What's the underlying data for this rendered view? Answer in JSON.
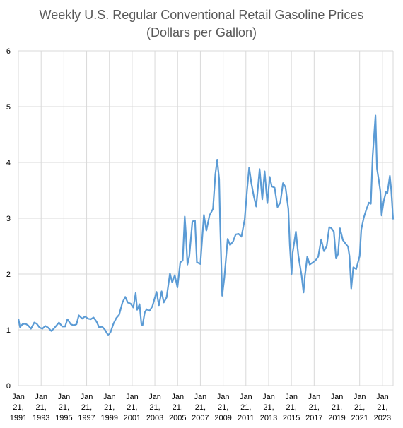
{
  "chart_data": {
    "type": "line",
    "title_line1": "Weekly U.S. Regular Conventional Retail Gasoline Prices",
    "title_line2": "(Dollars per Gallon)",
    "xlabel": "",
    "ylabel": "",
    "ylim": [
      0,
      6
    ],
    "yticks": [
      "0",
      "1",
      "2",
      "3",
      "4",
      "5",
      "6"
    ],
    "xlim": [
      "1991-01-21",
      "2023-12-31"
    ],
    "xticks": [
      {
        "date": "1991-01-21",
        "month": "Jan",
        "day": "21,",
        "year": "1991"
      },
      {
        "date": "1993-01-21",
        "month": "Jan",
        "day": "21,",
        "year": "1993"
      },
      {
        "date": "1995-01-21",
        "month": "Jan",
        "day": "21,",
        "year": "1995"
      },
      {
        "date": "1997-01-21",
        "month": "Jan",
        "day": "21,",
        "year": "1997"
      },
      {
        "date": "1999-01-21",
        "month": "Jan",
        "day": "21,",
        "year": "1999"
      },
      {
        "date": "2001-01-21",
        "month": "Jan",
        "day": "21,",
        "year": "2001"
      },
      {
        "date": "2003-01-21",
        "month": "Jan",
        "day": "21,",
        "year": "2003"
      },
      {
        "date": "2005-01-21",
        "month": "Jan",
        "day": "21,",
        "year": "2005"
      },
      {
        "date": "2007-01-21",
        "month": "Jan",
        "day": "21,",
        "year": "2007"
      },
      {
        "date": "2009-01-21",
        "month": "Jan",
        "day": "21,",
        "year": "2009"
      },
      {
        "date": "2011-01-21",
        "month": "Jan",
        "day": "21,",
        "year": "2011"
      },
      {
        "date": "2013-01-21",
        "month": "Jan",
        "day": "21,",
        "year": "2013"
      },
      {
        "date": "2015-01-21",
        "month": "Jan",
        "day": "21,",
        "year": "2015"
      },
      {
        "date": "2017-01-21",
        "month": "Jan",
        "day": "21,",
        "year": "2017"
      },
      {
        "date": "2019-01-21",
        "month": "Jan",
        "day": "21,",
        "year": "2019"
      },
      {
        "date": "2021-01-21",
        "month": "Jan",
        "day": "21,",
        "year": "2021"
      },
      {
        "date": "2023-01-21",
        "month": "Jan",
        "day": "21,",
        "year": "2023"
      }
    ],
    "grid": true,
    "legend": "none",
    "color": "#5b9bd5",
    "series": [
      {
        "x": [
          "1991-01-21",
          "1991-03-15",
          "1991-06-01",
          "1991-09-01",
          "1991-12-01",
          "1992-03-01",
          "1992-06-15",
          "1992-09-01",
          "1992-12-01",
          "1993-03-01",
          "1993-06-01",
          "1993-09-01",
          "1993-12-15",
          "1994-03-01",
          "1994-06-01",
          "1994-08-15",
          "1994-12-01",
          "1995-03-01",
          "1995-05-15",
          "1995-09-01",
          "1995-12-01",
          "1996-03-01",
          "1996-05-15",
          "1996-09-01",
          "1996-12-01",
          "1997-03-01",
          "1997-06-01",
          "1997-09-01",
          "1997-12-01",
          "1998-03-01",
          "1998-06-01",
          "1998-09-01",
          "1998-12-15",
          "1999-03-01",
          "1999-06-01",
          "1999-09-01",
          "1999-12-01",
          "2000-03-15",
          "2000-06-15",
          "2000-09-01",
          "2000-12-01",
          "2001-03-01",
          "2001-05-15",
          "2001-07-01",
          "2001-09-15",
          "2001-11-15",
          "2001-12-20",
          "2002-03-01",
          "2002-05-01",
          "2002-08-01",
          "2002-11-01",
          "2003-03-15",
          "2003-06-01",
          "2003-08-25",
          "2003-11-01",
          "2004-02-01",
          "2004-05-20",
          "2004-08-01",
          "2004-10-20",
          "2005-01-15",
          "2005-04-15",
          "2005-07-01",
          "2005-09-05",
          "2005-10-15",
          "2005-12-01",
          "2006-02-01",
          "2006-05-10",
          "2006-08-01",
          "2006-10-01",
          "2007-01-20",
          "2007-05-15",
          "2007-08-01",
          "2007-11-10",
          "2008-03-01",
          "2008-05-15",
          "2008-07-14",
          "2008-09-15",
          "2008-10-15",
          "2008-12-22",
          "2009-03-01",
          "2009-06-15",
          "2009-09-01",
          "2009-12-01",
          "2010-03-01",
          "2010-06-01",
          "2010-09-01",
          "2010-12-15",
          "2011-03-01",
          "2011-05-05",
          "2011-07-15",
          "2011-10-01",
          "2011-12-20",
          "2012-04-05",
          "2012-07-01",
          "2012-09-15",
          "2012-12-10",
          "2013-02-25",
          "2013-05-01",
          "2013-08-01",
          "2013-11-01",
          "2014-02-01",
          "2014-04-28",
          "2014-07-15",
          "2014-10-15",
          "2014-12-01",
          "2015-01-26",
          "2015-03-01",
          "2015-06-15",
          "2015-09-01",
          "2015-12-15",
          "2016-02-15",
          "2016-04-01",
          "2016-06-15",
          "2016-09-01",
          "2016-12-15",
          "2017-03-01",
          "2017-06-01",
          "2017-09-05",
          "2017-12-01",
          "2018-03-01",
          "2018-05-20",
          "2018-08-01",
          "2018-10-15",
          "2018-12-24",
          "2019-03-01",
          "2019-05-01",
          "2019-08-01",
          "2019-11-01",
          "2020-01-15",
          "2020-03-01",
          "2020-04-27",
          "2020-07-01",
          "2020-10-01",
          "2021-01-21",
          "2021-03-15",
          "2021-06-01",
          "2021-09-01",
          "2021-11-15",
          "2022-01-15",
          "2022-03-15",
          "2022-06-13",
          "2022-08-01",
          "2022-10-01",
          "2022-11-15",
          "2022-12-26",
          "2023-03-01",
          "2023-05-15",
          "2023-07-01",
          "2023-09-18",
          "2023-11-01",
          "2023-12-31"
        ],
        "values": [
          1.2,
          1.05,
          1.1,
          1.11,
          1.08,
          1.02,
          1.13,
          1.11,
          1.04,
          1.02,
          1.07,
          1.04,
          0.98,
          1.02,
          1.08,
          1.13,
          1.06,
          1.06,
          1.19,
          1.1,
          1.08,
          1.1,
          1.26,
          1.2,
          1.24,
          1.2,
          1.19,
          1.22,
          1.15,
          1.04,
          1.06,
          1.0,
          0.9,
          0.96,
          1.11,
          1.21,
          1.27,
          1.49,
          1.59,
          1.49,
          1.47,
          1.4,
          1.66,
          1.36,
          1.46,
          1.1,
          1.08,
          1.31,
          1.37,
          1.34,
          1.42,
          1.68,
          1.44,
          1.69,
          1.49,
          1.58,
          2.01,
          1.85,
          1.98,
          1.76,
          2.21,
          2.24,
          3.03,
          2.71,
          2.17,
          2.32,
          2.94,
          2.96,
          2.21,
          2.18,
          3.06,
          2.78,
          3.05,
          3.17,
          3.79,
          4.05,
          3.7,
          2.94,
          1.61,
          1.93,
          2.63,
          2.52,
          2.58,
          2.71,
          2.72,
          2.67,
          2.98,
          3.51,
          3.91,
          3.63,
          3.4,
          3.21,
          3.88,
          3.34,
          3.84,
          3.27,
          3.74,
          3.57,
          3.55,
          3.2,
          3.28,
          3.63,
          3.56,
          3.17,
          2.52,
          2.0,
          2.38,
          2.76,
          2.33,
          1.97,
          1.67,
          1.97,
          2.31,
          2.17,
          2.21,
          2.24,
          2.31,
          2.62,
          2.41,
          2.5,
          2.84,
          2.82,
          2.76,
          2.28,
          2.36,
          2.82,
          2.61,
          2.54,
          2.49,
          2.32,
          1.74,
          2.12,
          2.09,
          2.32,
          2.8,
          3.01,
          3.17,
          3.28,
          3.26,
          4.12,
          4.84,
          3.89,
          3.67,
          3.49,
          3.05,
          3.3,
          3.47,
          3.45,
          3.76,
          3.5,
          2.98
        ]
      }
    ]
  }
}
